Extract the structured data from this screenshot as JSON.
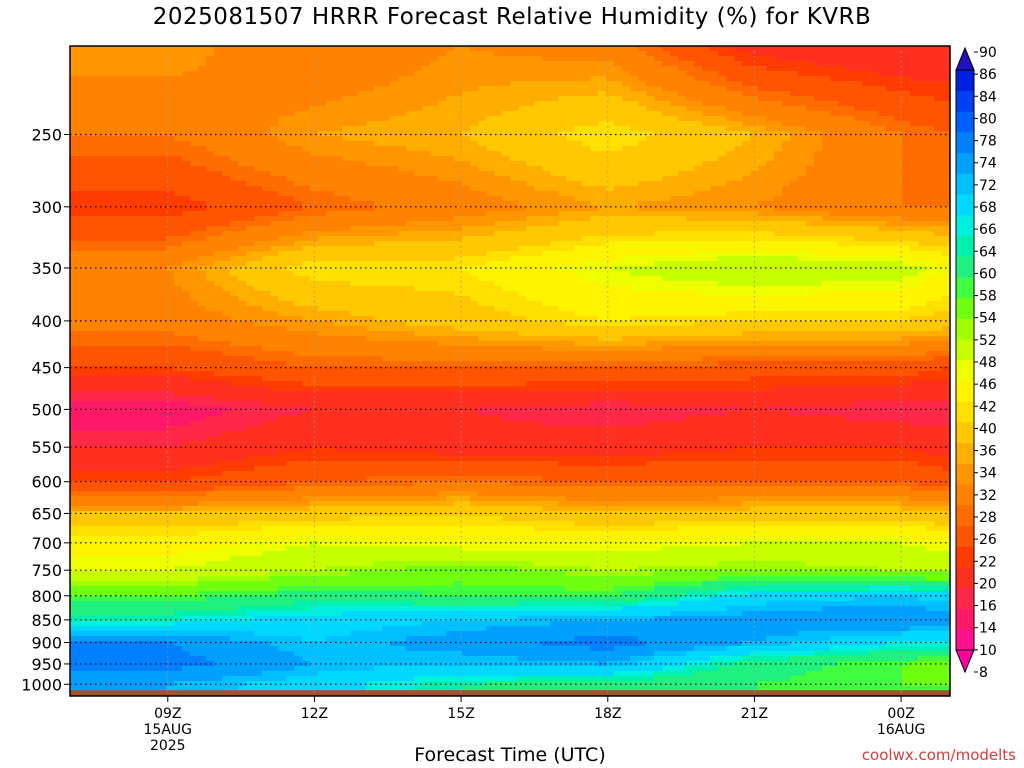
{
  "title": "2025081507 HRRR Forecast Relative Humidity (%) for KVRB",
  "xlabel": "Forecast Time (UTC)",
  "credit": "coolwx.com/modelts",
  "chart_data": {
    "type": "heatmap",
    "title": "2025081507 HRRR Forecast Relative Humidity (%) for KVRB",
    "xlabel": "Forecast Time (UTC)",
    "ylabel": "",
    "x_unit": "hours after 2025-08-15 00Z",
    "xlim": [
      7.0,
      25.0
    ],
    "ylim": [
      200,
      1030
    ],
    "y_scale": "log",
    "x_ticks": [
      {
        "value": 9,
        "label": [
          "09Z",
          "15AUG",
          "2025"
        ]
      },
      {
        "value": 12,
        "label": [
          "12Z"
        ]
      },
      {
        "value": 15,
        "label": [
          "15Z"
        ]
      },
      {
        "value": 18,
        "label": [
          "18Z"
        ]
      },
      {
        "value": 21,
        "label": [
          "21Z"
        ]
      },
      {
        "value": 24,
        "label": [
          "00Z",
          "16AUG"
        ]
      }
    ],
    "y_ticks": [
      250,
      300,
      350,
      400,
      450,
      500,
      550,
      600,
      650,
      700,
      750,
      800,
      850,
      900,
      950,
      1000
    ],
    "grid": true,
    "surface_pressure": 1015,
    "colorbar": {
      "position": "right",
      "levels": [
        8,
        10,
        14,
        16,
        20,
        22,
        26,
        28,
        32,
        34,
        36,
        40,
        42,
        46,
        48,
        52,
        54,
        58,
        60,
        64,
        66,
        68,
        72,
        74,
        78,
        80,
        84,
        86,
        90
      ],
      "colors": [
        "#ff00a0",
        "#ff1090",
        "#ff1868",
        "#ff2848",
        "#ff3020",
        "#ff3c00",
        "#ff5400",
        "#ff6c00",
        "#ff8200",
        "#ff9600",
        "#ffae00",
        "#ffc800",
        "#ffe000",
        "#fff400",
        "#f0ff00",
        "#c8ff00",
        "#a0ff00",
        "#70ff10",
        "#40ff40",
        "#20f080",
        "#00f0b0",
        "#00f0e0",
        "#00d8ff",
        "#00c0ff",
        "#00a0ff",
        "#0080ff",
        "#0060ff",
        "#0040f0",
        "#0020e0",
        "#2010c0"
      ]
    },
    "pressure_levels": [
      200,
      250,
      300,
      350,
      400,
      450,
      500,
      550,
      600,
      650,
      700,
      750,
      800,
      850,
      900,
      950,
      1000
    ],
    "times": [
      7,
      9,
      12,
      15,
      18,
      21,
      24,
      25
    ],
    "rh": [
      [
        34,
        34,
        28,
        32,
        30,
        18,
        16,
        16
      ],
      [
        28,
        28,
        34,
        36,
        42,
        36,
        28,
        26
      ],
      [
        20,
        20,
        26,
        30,
        34,
        32,
        28,
        28
      ],
      [
        32,
        32,
        42,
        42,
        48,
        52,
        50,
        46
      ],
      [
        30,
        30,
        34,
        38,
        42,
        40,
        40,
        38
      ],
      [
        22,
        22,
        26,
        26,
        26,
        24,
        24,
        22
      ],
      [
        12,
        12,
        16,
        16,
        14,
        16,
        14,
        14
      ],
      [
        16,
        16,
        20,
        18,
        18,
        20,
        20,
        18
      ],
      [
        22,
        22,
        26,
        28,
        26,
        26,
        26,
        24
      ],
      [
        36,
        36,
        38,
        40,
        36,
        38,
        38,
        36
      ],
      [
        44,
        44,
        48,
        46,
        46,
        48,
        48,
        46
      ],
      [
        48,
        48,
        52,
        56,
        52,
        54,
        52,
        52
      ],
      [
        58,
        58,
        62,
        60,
        60,
        70,
        72,
        70
      ],
      [
        66,
        66,
        70,
        72,
        74,
        76,
        78,
        76
      ],
      [
        78,
        78,
        72,
        76,
        80,
        74,
        68,
        68
      ],
      [
        80,
        80,
        74,
        72,
        74,
        62,
        58,
        56
      ],
      [
        74,
        74,
        70,
        64,
        62,
        60,
        58,
        58
      ]
    ]
  }
}
